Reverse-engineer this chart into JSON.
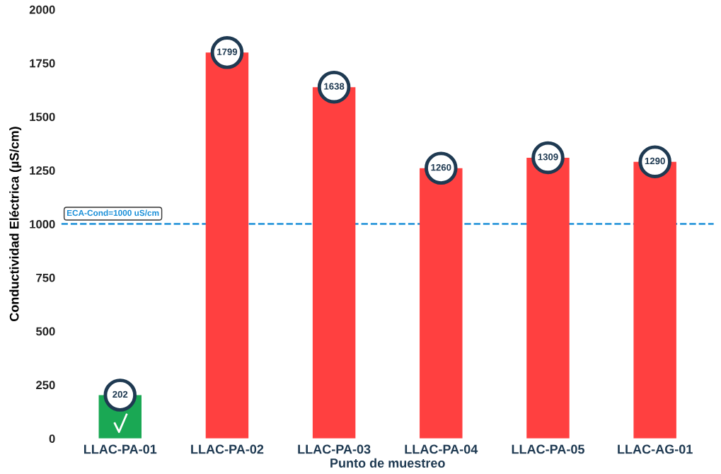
{
  "chart_data": {
    "type": "bar",
    "xlabel": "Punto de muestreo",
    "ylabel": "Conductividad Eléctrica (µS/cm)",
    "categories": [
      "LLAC-PA-01",
      "LLAC-PA-02",
      "LLAC-PA-03",
      "LLAC-PA-04",
      "LLAC-PA-05",
      "LLAC-AG-01"
    ],
    "values": [
      202,
      1799,
      1638,
      1260,
      1309,
      1290
    ],
    "colors": [
      "#1aa854",
      "#ff4040",
      "#ff4040",
      "#ff4040",
      "#ff4040",
      "#ff4040"
    ],
    "ylim": [
      0,
      2000
    ],
    "yticks": [
      0,
      250,
      500,
      750,
      1000,
      1250,
      1500,
      1750,
      2000
    ],
    "ref_lines": [
      {
        "axis": "y",
        "value": 1000,
        "label": "ECA-Cond=1000 uS/cm",
        "color": "#1a8fd8",
        "line_style": "dashed"
      }
    ],
    "data_labels": true,
    "grid": false,
    "legend": false
  }
}
